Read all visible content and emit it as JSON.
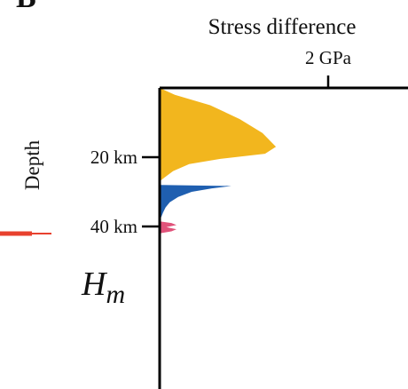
{
  "chart_data": {
    "type": "area",
    "panel_label": "B",
    "title": "Stress difference",
    "x_tick": {
      "value": 2,
      "label": "2 GPa"
    },
    "xlim": [
      0,
      3
    ],
    "ylabel": "Depth",
    "ylim": [
      0,
      70
    ],
    "y_ticks": [
      {
        "value": 20,
        "label": "20 km"
      },
      {
        "value": 40,
        "label": "40 km"
      }
    ],
    "annotation": {
      "text": "H",
      "subscript": "m",
      "depth_km": 40
    },
    "colors": {
      "axis": "#000000",
      "upper": "#F2B61E",
      "lower": "#1F5FB0",
      "pink": "#E0527A",
      "marker": "#E8412E"
    },
    "series": [
      {
        "depth": [
          0,
          2,
          5,
          9,
          13,
          17,
          19,
          20.5,
          22,
          24,
          26,
          27
        ],
        "values": [
          0,
          0.18,
          0.6,
          0.95,
          1.22,
          1.38,
          1.25,
          0.72,
          0.35,
          0.16,
          0.05,
          0
        ]
      },
      {
        "depth": [
          28,
          28.3,
          29,
          30,
          31.5,
          33,
          34.5,
          36,
          37.2,
          37.8,
          38.3
        ],
        "values": [
          0,
          0.85,
          0.62,
          0.38,
          0.22,
          0.12,
          0.07,
          0.04,
          0.02,
          0.008,
          0
        ]
      },
      {
        "depth": [
          38.5,
          39,
          39.6,
          40.2,
          40.8,
          41.4,
          42
        ],
        "values": [
          0,
          0.14,
          0.2,
          0.08,
          0.2,
          0.14,
          0
        ]
      }
    ]
  }
}
